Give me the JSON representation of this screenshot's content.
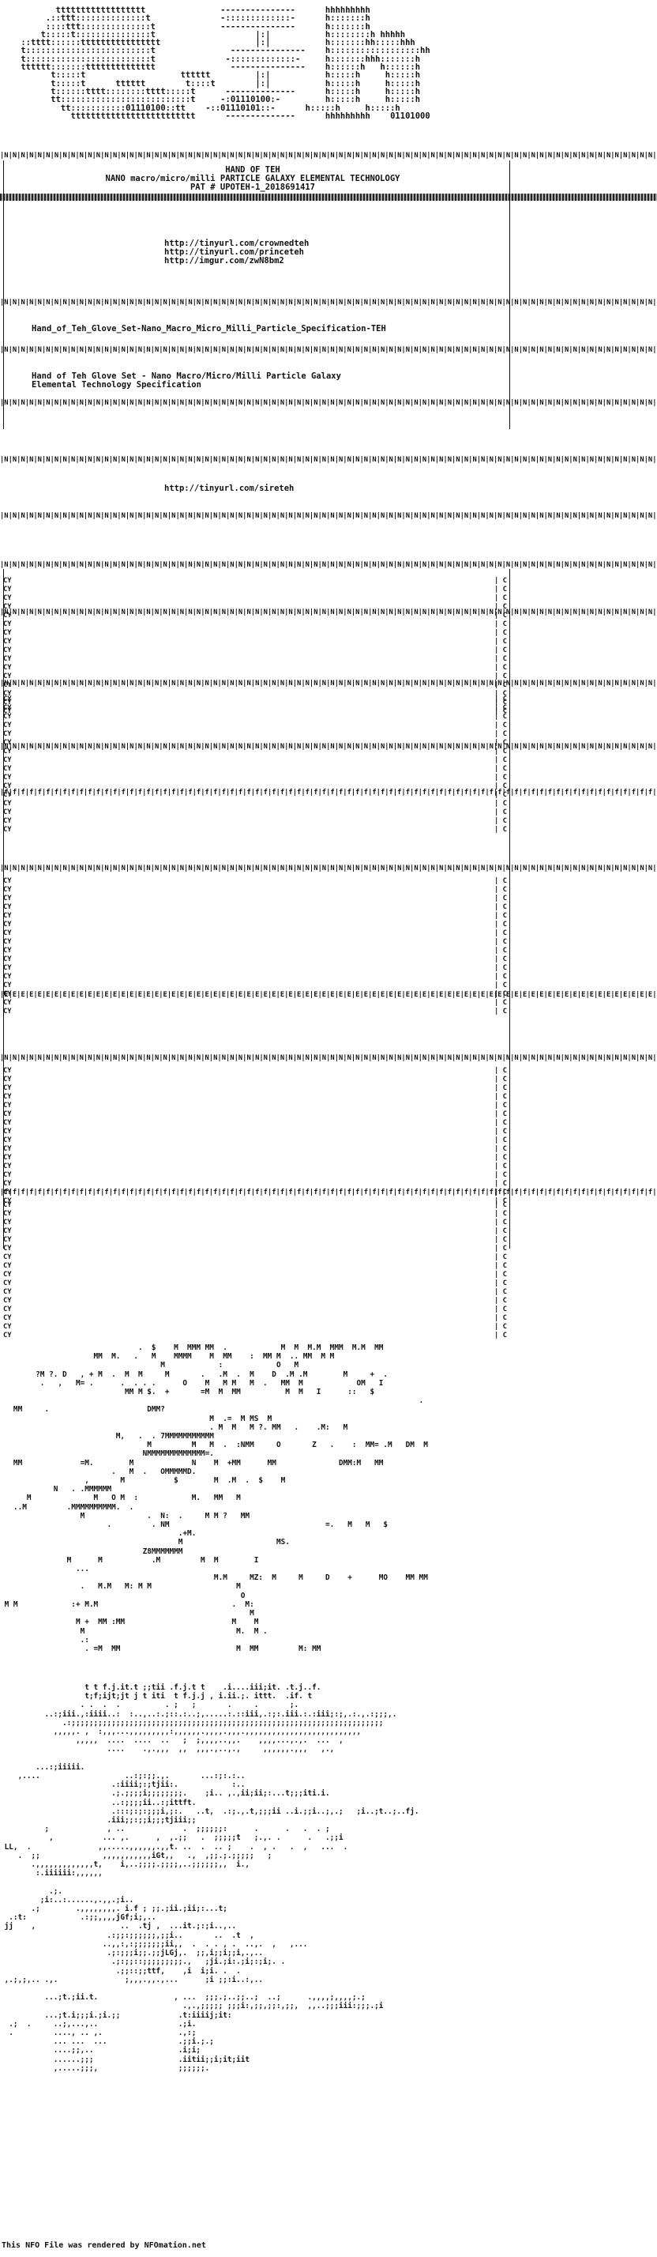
{
  "logo_text": "        tttttttttttttttttt               ---------------      hhhhhhhhh\n      .::ttt::::::::::::::t              -:::::::::::::-      h:::::::h\n      ::::ttt::::::::::::::t             ---------------      h:::::::h\n     t:::::t:::::::::::::::t                    |:|           h::::::::h hhhhh\n ::tttt::::::tttttttttttttttt                   |:|           h:::::::hh:::::hhh\n t:::::::::::::::::::::::::t               ---------------    h::::::::::::::::::hh\n t:::::::::::::::::::::::::t              -:::::::::::::-     h:::::::hhh:::::::h\n tttttt:::::::tttttttttttttt               ---------------    h::::::h   h::::::h\n       t:::::t                   tttttt         |:|           h:::::h     h:::::h\n       t:::::t      tttttt        t::::t        |:|           h:::::h     h:::::h\n       t::::::tttt::::::::tttt:::::t      --------------      h:::::h     h:::::h\n       tt::::::::::::::::::::::::::t     -:01110100:-         h:::::h     h:::::h\n         tt:::::::::::01110100::tt    -::01110101::-      h:::::h     h:::::h\n           ttttttttttttttttttttttttt      --------------      hhhhhhhhh    01101000",
  "header": {
    "line1": "HAND OF TEH",
    "line2": "NANO macro/micro/milli PARTICLE GALAXY ELEMENTAL TECHNOLOGY",
    "line3": "PAT # UPOTEH-1_2018691417"
  },
  "links_block": {
    "urls": [
      "http://tinyurl.com/crownedteh",
      "http://tinyurl.com/princeteh",
      "http://imgur.com/zwN8bm2"
    ]
  },
  "spec_title": "Hand_of_Teh_Glove_Set-Nano_Macro_Micro_Milli_Particle_Specification-TEH",
  "spec_desc_line1": "Hand of Teh Glove Set - Nano Macro/Micro/Milli Particle Galaxy",
  "spec_desc_line2": "Elemental Technology Specification",
  "sireteh_url": "http://tinyurl.com/sireteh",
  "stitch_row": "|N|N|N|N|N|N|N|N|N|N|N|N|N|N|N|N|N|N|N|N|N|N|N|N|N|N|N|N|N|N|N|N|N|N|N|N|N|N|N|N|N|N|N|N|N|N|N|N|N|N|N|N|N|N|N|N|N|N|N|N|N|N|N|N|N|N|N|N|N|N|N|N|N|N|N|N|N|N|N|N|N|N|N|N|N|N|N|N|N|N|N|N|N|N|N|N|N|N|N|N|N| >>",
  "stitch_row_f": "|f|f|f|f|f|f|f|f|f|f|f|f|f|f|f|f|f|f|f|f|f|f|f|f|f|f|f|f|f|f|f|f|f|f|f|f|f|f|f|f|f|f|f|f|f|f|f|f|f|f|f|f|f|f|f|f|f|f|f|f|f|f|f|f|f|f|f|f|f|f|f|f|f|f|f|f|f|f|f|f|f|f|f|f|f|f|f|f|f|f|f|f|f|f|f|f|f|f|f|f|f| >>",
  "stitch_row_e": "|E|E|E|E|E|E|E|E|E|E|E|E|E|E|E|E|E|E|E|E|E|E|E|E|E|E|E|E|E|E|E|E|E|E|E|E|E|E|E|E|E|E|E|E|E|E|E|E|E|E|E|E|E|E|E|E|E|E|E|E|E|E|E|E|E|E|E|E|E|E|E|E|E|E|E|E|E|E|E|E|E|E|E|E|E|E|E|E|E|E|E|E|E|E|E|E|E|E|E|E|E| >>",
  "side_left": "CY\nCY\nCY\nCY\nCY\nCY\nCY\nCY\nCY\nCY\nCY\nCY\nCY\nCY\nCY\nCY",
  "side_right": "| C\n| C\n| C\n| C\n| C\n| C\n| C\n| C\n| C\n| C\n| C\n| C\n| C\n| C\n| C\n| C",
  "photo_art_top": "                               .  $    M  MMM MM  .            M  M  M.M  MMM  M.M  MM\n                     MM  M.   .   M    MMMM    M  MM    :  MM M  .. MM  M M\n                                    M            :            O   M\n        ?M ?. D   , + M  .  M  M     M       .   .M  .  M    D  .M .M        M     +  .\n         .   ,   M= .      .  . . .      O    M   M M   M  .   MM  M            OM   I\n                            MM M $.  +       =M  M  MM          M  M   I      ::   $\n                                                                                              .\n   MM     .                      DMM?\n                                               M  .=  M MS  M\n                                               . M  M   M ?. MM   .    .M:   M\n                          M,   .  . 7MMMMMMMMMMM\n                                 M         M   M  .  :NMM     O       Z   .    :  MM= .M   DM  M\n                                NMMMMMMMMMMMMM=.\n   MM             =M.        M             N    M  +MM      MM              DMM:M   MM\n                         .   M  .   OMMMMMD.\n                   ,       M           $        M  .M  .  $    M\n            N   . .MMMMMM\n      M              M   O M  :            M.   MM   M\n   ..M         .MMMMMMMMMM.  .\n                  M              .  N:  .     M M ?   MM\n                        .         . NM                                   =.   M   M   $\n                                        .+M.\n                                        M                     MS.\n                                Z8MMMMMMM\n               M      M           .M         M  M        I\n                 ...\n                                                M.M     MZ:  M     M     D    +      MO    MM MM\n                  .   M.M   M: M M                   M\n                                                      O\n M M            :+ M.M                              .  M:\n                                                        M\n                 M +  MM :MM                        M    M\n                  M                                  M.  M .\n                  .:\n                   . =M  MM                          M  MM         M: MM\n",
  "photo_art_bottom": "                   t t f.j.it.t ;;tii .f.j.t t    .i....iii;it. .t.j..f.\n                   t;f;ijt;jt j t iti  t f.j.j , i.ii.;. ittt.  .if. t\n                  . .  .  .          . ;   ;       .     .       ;.\n          ..:;iii.,:iiii..:  :..,..:.;::.:..;,.....:.::iii,.:;:.iii.:.:iii;:;,.:.,.:;;;,.\n              .:;;;;;;;;;;;;;;;;;;;;;;;;;;;;;;;;;;;;;;;;;;;;;;;;;;;;;;;;;;;;;;;;;;;;;;\n            ,,,,,. ,  :,,,...,,,,,,,,,:,,,,,,.,,,,.,,,.,,,,,,,,,,,,,,,,,,,,,,,,,,\n                 ,,,,,  ....  ....  ..   ;  ;,,,,..,,.    ,,,,...,.,.  ...  ,\n                        ....    .,.,,,  ,,  ,,,.,..,.,     ,,,,,,.,,,   ,.,\n\n        ...:;iiiii.\n    ,....                   ..:;:;;.,.       ...:;:.:..\n                         .:iiii;:;tjii:.            :..\n                         .;.;;;;i;;;;;;;;.    ;i.. ,.,ii;ii;:...t;;;iti.i.\n                         ..:;;;;ii..:;ittft.\n                         .:::;:;:;;;i,;:.   ..t,  .:;.,.t,;;;ii ..i.;;i..;,.;   ;i..;t..;..fj.\n                        .iii;;:;;i;;;tjiii;;\n          ;             , ..             .  ;;;;;;:      .      .   .  . ;\n           ,           ... ,.      ,  ,.;;   .  ;;;;;t   ;.,. .      .   .;;i\n LL,  .               ,,.....,,,,,,.,,t. ..  .  .. ;    .  , .   .  ,   ...  .\n    .  ;;              ,,,,,,,,,,,iGt,,   .,  ,;;.;.;;;;;   ;\n       .,,,,,,,,,,,,,t,    i,..;;;;.;;;;,..;;;;;;,,  i.,\n        :.iiiiii:,,,,,,\n\n           .;.\n         ;i:..:......,.,,.;i..\n       .;        .,,,,,,,,. i.f ; ;;.;ii.;ii;:...t;\n  .:t:            .:;;,,,,jGf;i;,..\n jj    ,                   ..  .tj ,  ...it.;:;i..,..\n                        .:;;:;;;;;;,;;i..       ..  .t  ,\n                       ..,,:,:;;;;;;;ii,,  .  . . , .  ..,.  ,   ,...\n                        .;:;;;i;;.;;jLGj,.  ;;,i;;i;;i,.,..\n                         .;:;;::;;;;;;;;;.,   ;ji.;i:.;i;:;i;. .\n                          .;;::;;ttf,    ,i  i;i. .  .\n ,.;,;,.. .,.               ;,,,.,,.,...      ;i ;;:i..:,..\n\n          ...;t.;ii.t.                 , ...  ;;;.;..;;..;  ..;      .,,,,;,,,,;.;\n                                         .,.,;;;;; ;;;i:,;;,;;:,;;,  ,,..;;;iii:;;;.;i\n          ...;t.i;;;i.;i.;;             .t:iiiij;it:\n  .;  .     ..;,...,..                  .;i.\n  .         ...., .. ,.                 .,:;\n            ... ...  ...                .;;i.;.;\n            ....;;,..                   .i;i;\n            ......;;;                   .iitii;;i;it;iit\n            ,.....;;;,                  ;;;;;;.",
  "footer_text": "This NFO File was rendered by NFOmation.net"
}
